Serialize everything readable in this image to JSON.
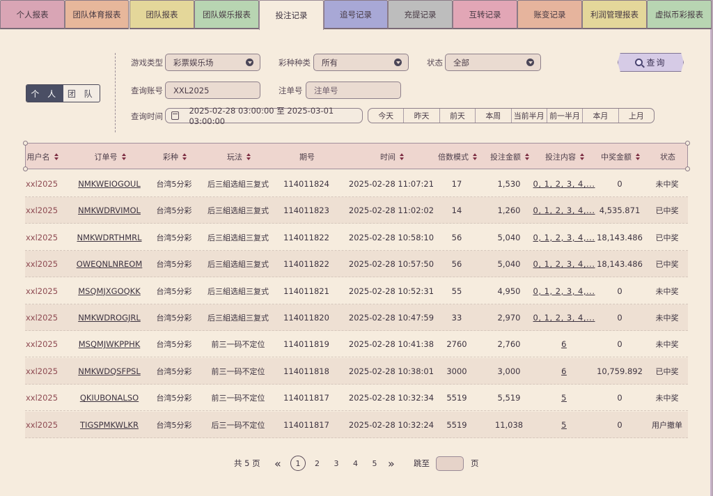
{
  "tabs": [
    {
      "label": "个人报表",
      "color": "#d9a5b5"
    },
    {
      "label": "团队体育报表",
      "color": "#e7b79b"
    },
    {
      "label": "团队报表",
      "color": "#e4d79a"
    },
    {
      "label": "团队娱乐报表",
      "color": "#b8d5b2"
    },
    {
      "label": "投注记录",
      "color": "#f6ecde"
    },
    {
      "label": "追号记录",
      "color": "#a8a8d6"
    },
    {
      "label": "充提记录",
      "color": "#bdbdbd"
    },
    {
      "label": "互转记录",
      "color": "#e2a6b6"
    },
    {
      "label": "账变记录",
      "color": "#e6b49d"
    },
    {
      "label": "利润管理报表",
      "color": "#e4d79a"
    },
    {
      "label": "虚拟币彩报表",
      "color": "#b8d5b2"
    }
  ],
  "scope_toggle": {
    "personal": "个 人",
    "team": "团 队"
  },
  "filters": {
    "game_type_label": "游戏类型",
    "game_type_value": "彩票娱乐场",
    "lottery_label": "彩种种类",
    "lottery_value": "所有",
    "status_label": "状态",
    "status_value": "全部",
    "account_label": "查询账号",
    "account_value": "XXL2025",
    "order_label": "注单号",
    "order_placeholder": "注单号",
    "time_label": "查询时间",
    "time_value": "2025-02-28 03:00:00 至 2025-03-01 03:00:00",
    "query_button": "查询"
  },
  "quick_ranges": [
    "今天",
    "昨天",
    "前天",
    "本周",
    "当前半月",
    "前一半月",
    "本月",
    "上月"
  ],
  "table": {
    "headers": [
      "用户名",
      "订单号",
      "彩种",
      "玩法",
      "期号",
      "时间",
      "倍数模式",
      "投注金额",
      "投注内容",
      "中奖金额",
      "状态"
    ],
    "rows": [
      [
        "xxl2025",
        "NMKWEIOGOUL",
        "台湾5分彩",
        "后三組选組三复式",
        "114011824",
        "2025-02-28 11:07:21",
        "17",
        "1,530",
        "0, 1, 2, 3, 4,...",
        "0",
        "未中奖"
      ],
      [
        "xxl2025",
        "NMKWDRVIMOL",
        "台湾5分彩",
        "后三組选組三复式",
        "114011823",
        "2025-02-28 11:02:02",
        "14",
        "1,260",
        "0, 1, 2, 3, 4,...",
        "4,535.871",
        "已中奖"
      ],
      [
        "xxl2025",
        "NMKWDRTHMRL",
        "台湾5分彩",
        "后三組选組三复式",
        "114011822",
        "2025-02-28 10:58:10",
        "56",
        "5,040",
        "0, 1, 2, 3, 4,...",
        "18,143.486",
        "已中奖"
      ],
      [
        "xxl2025",
        "OWEQNLNREOM",
        "台湾5分彩",
        "后三組选組三复式",
        "114011822",
        "2025-02-28 10:57:50",
        "56",
        "5,040",
        "0, 1, 2, 3, 4,...",
        "18,143.486",
        "已中奖"
      ],
      [
        "xxl2025",
        "MSQMJXGOQKK",
        "台湾5分彩",
        "后三組选組三复式",
        "114011821",
        "2025-02-28 10:52:31",
        "55",
        "4,950",
        "0, 1, 2, 3, 4,...",
        "0",
        "未中奖"
      ],
      [
        "xxl2025",
        "NMKWDROGJRL",
        "台湾5分彩",
        "后三組选組三复式",
        "114011820",
        "2025-02-28 10:47:59",
        "33",
        "2,970",
        "0, 1, 2, 3, 4,...",
        "0",
        "未中奖"
      ],
      [
        "xxl2025",
        "MSQMJWKPPHK",
        "台湾5分彩",
        "前三一码不定位",
        "114011819",
        "2025-02-28 10:41:38",
        "2760",
        "2,760",
        "6",
        "0",
        "未中奖"
      ],
      [
        "xxl2025",
        "NMKWDQSFPSL",
        "台湾5分彩",
        "前三一码不定位",
        "114011818",
        "2025-02-28 10:38:01",
        "3000",
        "3,000",
        "6",
        "10,759.892",
        "已中奖"
      ],
      [
        "xxl2025",
        "QKIUBONALSO",
        "台湾5分彩",
        "前三一码不定位",
        "114011817",
        "2025-02-28 10:32:34",
        "5519",
        "5,519",
        "5",
        "0",
        "未中奖"
      ],
      [
        "xxl2025",
        "TIGSPMKWLKR",
        "台湾5分彩",
        "后三一码不定位",
        "114011817",
        "2025-02-28 10:32:24",
        "5519",
        "11,038",
        "5",
        "0",
        "用户撤单"
      ]
    ]
  },
  "pagination": {
    "total_label": "共 5 页",
    "prev": "«",
    "next": "»",
    "pages": [
      "1",
      "2",
      "3",
      "4",
      "5"
    ],
    "current": "1",
    "jump_label": "跳至",
    "page_suffix": "页"
  }
}
